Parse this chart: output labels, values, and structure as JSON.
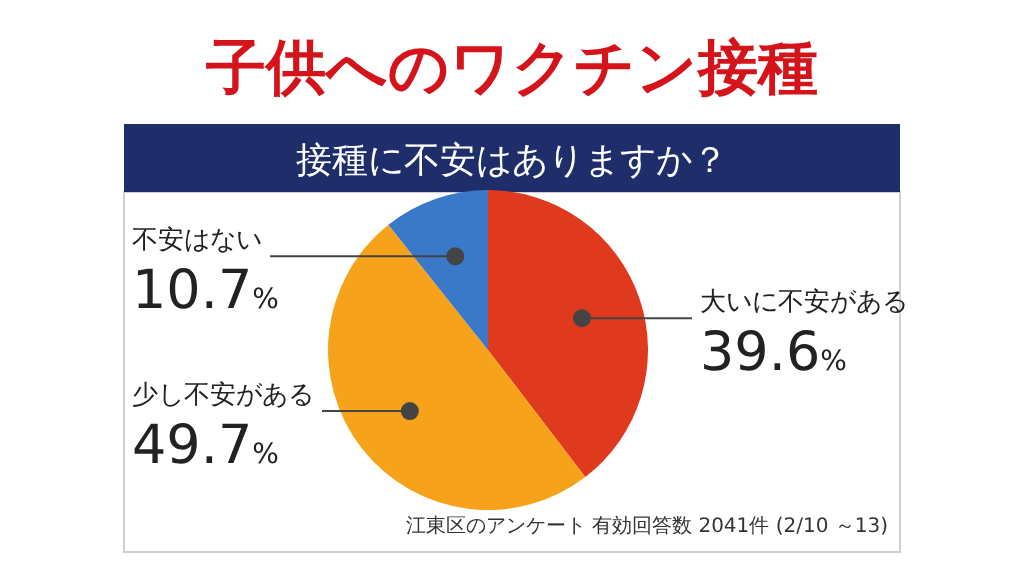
{
  "chart_data": {
    "type": "pie",
    "title": "子供へのワクチン接種",
    "subtitle": "接種に不安はありますか？",
    "categories": [
      "大いに不安がある",
      "少し不安がある",
      "不安はない"
    ],
    "values": [
      39.6,
      49.7,
      10.7
    ],
    "colors": [
      "#e03a1e",
      "#f7a21b",
      "#3a78c8"
    ],
    "value_labels": [
      "39.6%",
      "49.7%",
      "10.7%"
    ],
    "annotations": [
      "江東区のアンケート 有効回答数 2041件 (2/10 ～13)"
    ]
  }
}
